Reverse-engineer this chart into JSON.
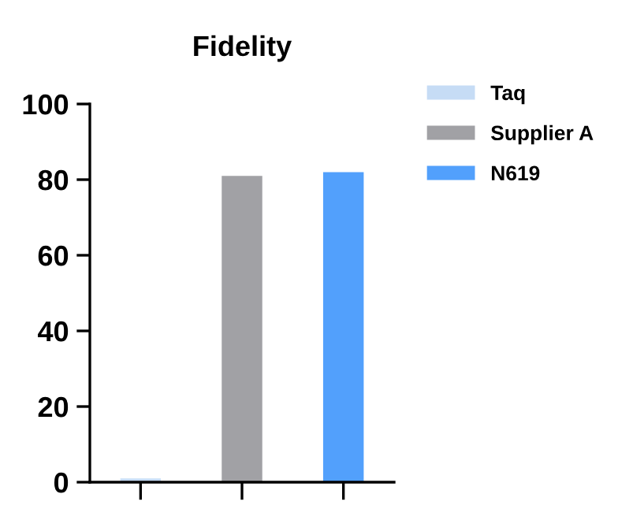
{
  "chart_data": {
    "type": "bar",
    "title": "Fidelity",
    "categories": [
      null,
      null,
      null
    ],
    "series": [
      {
        "name": "Taq",
        "color": "#c6dcf5",
        "values": [
          1,
          null,
          null
        ]
      },
      {
        "name": "Supplier A",
        "color": "#a1a1a5",
        "values": [
          null,
          81,
          null
        ]
      },
      {
        "name": "N619",
        "color": "#52a0fc",
        "values": [
          null,
          null,
          82
        ]
      }
    ],
    "ylim": [
      0,
      100
    ],
    "yticks": [
      0,
      20,
      40,
      60,
      80,
      100
    ],
    "grid": false,
    "legend": "top right"
  }
}
